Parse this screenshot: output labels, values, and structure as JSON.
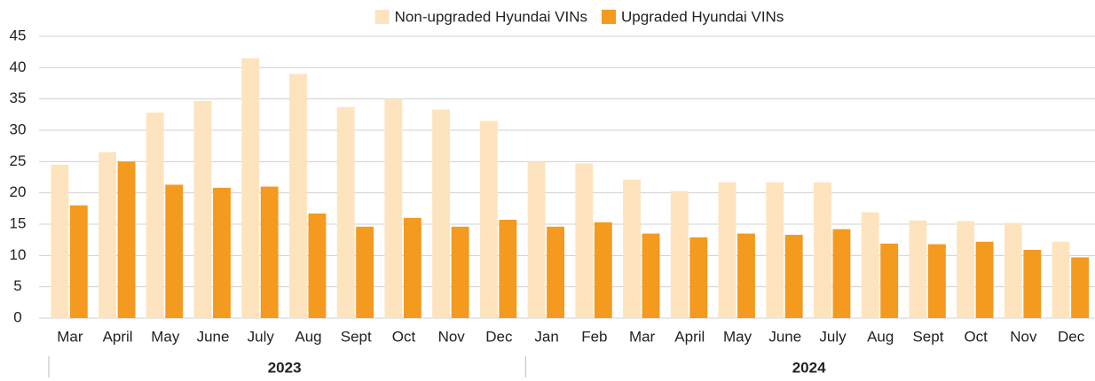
{
  "chart_data": {
    "type": "bar",
    "categories": [
      "Mar",
      "April",
      "May",
      "June",
      "July",
      "Aug",
      "Sept",
      "Oct",
      "Nov",
      "Dec",
      "Jan",
      "Feb",
      "Mar",
      "April",
      "May",
      "June",
      "July",
      "Aug",
      "Sept",
      "Oct",
      "Nov",
      "Dec"
    ],
    "year_groups": [
      {
        "label": "2023",
        "span": 10
      },
      {
        "label": "2024",
        "span": 12
      }
    ],
    "series": [
      {
        "name": "Non-upgraded Hyundai VINs",
        "color": "#fde4bf",
        "values": [
          24.5,
          26.5,
          32.8,
          34.7,
          41.5,
          39,
          33.7,
          35,
          33.3,
          31.5,
          25,
          24.7,
          22.1,
          20.3,
          21.7,
          21.7,
          21.7,
          16.9,
          15.6,
          15.5,
          15.2,
          12.2
        ]
      },
      {
        "name": "Upgraded Hyundai VINs",
        "color": "#f39a1f",
        "values": [
          18,
          25,
          21.3,
          20.8,
          21,
          16.7,
          14.6,
          16,
          14.6,
          15.7,
          14.6,
          15.3,
          13.5,
          12.9,
          13.5,
          13.3,
          14.2,
          11.9,
          11.8,
          12.2,
          10.9,
          9.7
        ]
      }
    ],
    "ylim": [
      0,
      45
    ],
    "yticks": [
      0,
      5,
      10,
      15,
      20,
      25,
      30,
      35,
      40,
      45
    ],
    "grid": true,
    "legend": "top"
  }
}
